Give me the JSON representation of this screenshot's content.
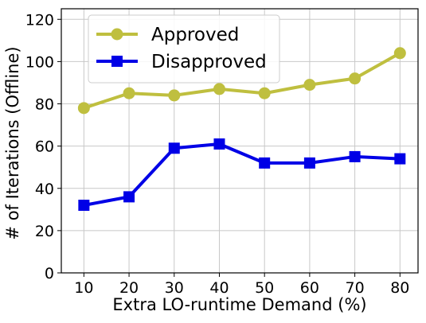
{
  "chart_data": {
    "type": "line",
    "x": [
      10,
      20,
      30,
      40,
      50,
      60,
      70,
      80
    ],
    "series": [
      {
        "name": "Approved",
        "values": [
          78,
          85,
          84,
          87,
          85,
          89,
          92,
          104
        ],
        "color": "#bfbf3f",
        "marker": "circle"
      },
      {
        "name": "Disapproved",
        "values": [
          32,
          36,
          59,
          61,
          52,
          52,
          55,
          54
        ],
        "color": "#0000e6",
        "marker": "square"
      }
    ],
    "xlabel": "Extra LO-runtime Demand (%)",
    "ylabel": "# of Iterations (Offline)",
    "xlim": [
      5,
      84
    ],
    "ylim": [
      0,
      125
    ],
    "xticks": [
      10,
      20,
      30,
      40,
      50,
      60,
      70,
      80
    ],
    "yticks": [
      0,
      20,
      40,
      60,
      80,
      100,
      120
    ],
    "grid": true,
    "legend_position": "top-left"
  }
}
